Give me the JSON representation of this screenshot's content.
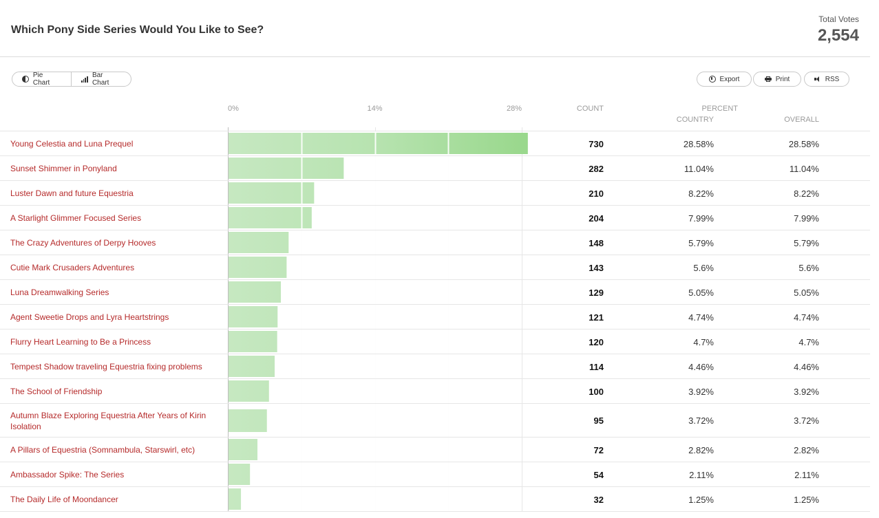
{
  "header": {
    "title": "Which Pony Side Series Would You Like to See?",
    "total_votes_label": "Total Votes",
    "total_votes_value": "2,554"
  },
  "toolbar": {
    "pie_chart_label": "Pie Chart",
    "bar_chart_label": "Bar Chart",
    "export_label": "Export",
    "print_label": "Print",
    "rss_label": "RSS"
  },
  "columns": {
    "count": "COUNT",
    "percent": "PERCENT",
    "country": "COUNTRY",
    "overall": "OVERALL"
  },
  "colors": {
    "bar_light": "#c3e6bf",
    "bar_dark": "#9ed98f",
    "label": "#b52a2a"
  },
  "chart_data": {
    "type": "bar",
    "orientation": "horizontal",
    "title": "Which Pony Side Series Would You Like to See?",
    "xlim": [
      0,
      28
    ],
    "x_ticks": [
      "0%",
      "14%",
      "28%"
    ],
    "grid": true,
    "categories": [
      "Young Celestia and Luna Prequel",
      "Sunset Shimmer in Ponyland",
      "Luster Dawn and future Equestria",
      "A Starlight Glimmer Focused Series",
      "The Crazy Adventures of Derpy Hooves",
      "Cutie Mark Crusaders Adventures",
      "Luna Dreamwalking Series",
      "Agent Sweetie Drops and Lyra Heartstrings",
      "Flurry Heart Learning to Be a Princess",
      "Tempest Shadow traveling Equestria fixing problems",
      "The School of Friendship",
      "Autumn Blaze Exploring Equestria After Years of Kirin Isolation",
      "A Pillars of Equestria (Somnambula, Starswirl, etc)",
      "Ambassador Spike: The Series",
      "The Daily Life of Moondancer"
    ],
    "counts": [
      "730",
      "282",
      "210",
      "204",
      "148",
      "143",
      "129",
      "121",
      "120",
      "114",
      "100",
      "95",
      "72",
      "54",
      "32"
    ],
    "values": [
      28.58,
      11.04,
      8.22,
      7.99,
      5.79,
      5.6,
      5.05,
      4.74,
      4.7,
      4.46,
      3.92,
      3.72,
      2.82,
      2.11,
      1.25
    ],
    "percent_country": [
      "28.58%",
      "11.04%",
      "8.22%",
      "7.99%",
      "5.79%",
      "5.6%",
      "5.05%",
      "4.74%",
      "4.7%",
      "4.46%",
      "3.92%",
      "3.72%",
      "2.82%",
      "2.11%",
      "1.25%"
    ],
    "percent_overall": [
      "28.58%",
      "11.04%",
      "8.22%",
      "7.99%",
      "5.79%",
      "5.6%",
      "5.05%",
      "4.74%",
      "4.7%",
      "4.46%",
      "3.92%",
      "3.72%",
      "2.82%",
      "2.11%",
      "1.25%"
    ]
  }
}
